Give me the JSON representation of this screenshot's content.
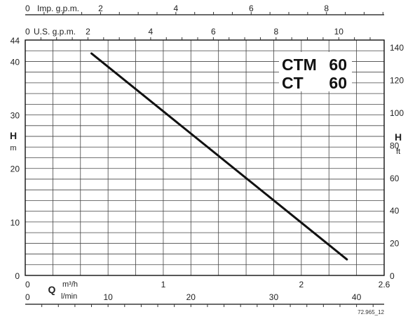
{
  "chart_data": {
    "type": "line",
    "model_line1": {
      "name": "CTM",
      "num": "60"
    },
    "model_line2": {
      "name": "CT",
      "num": "60"
    },
    "drawing_code": "72.965_12",
    "axes": {
      "left": {
        "letter": "H",
        "unit": "m",
        "range": [
          0,
          44
        ],
        "ticks": [
          {
            "v": 0,
            "t": "0"
          },
          {
            "v": 10,
            "t": "10"
          },
          {
            "v": 20,
            "t": "20"
          },
          {
            "v": 30,
            "t": "30"
          },
          {
            "v": 40,
            "t": "40"
          },
          {
            "v": 44,
            "t": "44"
          }
        ]
      },
      "right": {
        "letter": "H",
        "unit": "ft",
        "factor": 3.28084,
        "ticks": [
          {
            "v": 0,
            "t": "0"
          },
          {
            "v": 20,
            "t": "20"
          },
          {
            "v": 40,
            "t": "40"
          },
          {
            "v": 60,
            "t": "60"
          },
          {
            "v": 80,
            "t": "80"
          },
          {
            "v": 100,
            "t": "100"
          },
          {
            "v": 120,
            "t": "120"
          },
          {
            "v": 140,
            "t": "140"
          }
        ]
      },
      "bottom_m3h": {
        "letter": "Q",
        "unit": "m³/h",
        "range": [
          0,
          2.6
        ],
        "ticks": [
          {
            "v": 0,
            "t": "0"
          },
          {
            "v": 1,
            "t": "1"
          },
          {
            "v": 2,
            "t": "2"
          },
          {
            "v": 2.6,
            "t": "2.6"
          }
        ]
      },
      "bottom_lmin": {
        "unit": "l/min",
        "factor": 16.6667,
        "ticks": [
          {
            "v": 0,
            "t": "0"
          },
          {
            "v": 10,
            "t": "10"
          },
          {
            "v": 20,
            "t": "20"
          },
          {
            "v": 30,
            "t": "30"
          },
          {
            "v": 40,
            "t": "40"
          }
        ]
      },
      "top_us": {
        "label": "U.S. g.p.m.",
        "factor": 4.40287,
        "ticks": [
          {
            "v": 0,
            "t": "0"
          },
          {
            "v": 2,
            "t": "2"
          },
          {
            "v": 4,
            "t": "4"
          },
          {
            "v": 6,
            "t": "6"
          },
          {
            "v": 8,
            "t": "8"
          },
          {
            "v": 10,
            "t": "10"
          }
        ]
      },
      "top_imp": {
        "label": "Imp. g.p.m.",
        "factor": 3.66615,
        "ticks": [
          {
            "v": 0,
            "t": "0"
          },
          {
            "v": 2,
            "t": "2"
          },
          {
            "v": 4,
            "t": "4"
          },
          {
            "v": 6,
            "t": "6"
          },
          {
            "v": 8,
            "t": "8"
          }
        ]
      }
    },
    "grid": {
      "on": true,
      "x_step_m3h": 0.2,
      "y_step_m": 2
    },
    "series": [
      {
        "color": "#111111",
        "x": [
          0.48,
          2.33
        ],
        "y": [
          41.5,
          3.0
        ]
      }
    ]
  }
}
